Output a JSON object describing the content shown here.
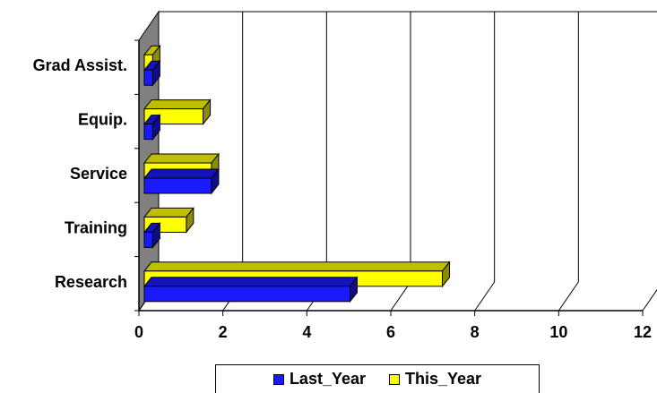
{
  "chart_data": {
    "type": "bar",
    "orientation": "horizontal",
    "style": "3d",
    "categories": [
      "Research",
      "Training",
      "Service",
      "Equip.",
      "Grad Assist."
    ],
    "series": [
      {
        "name": "Last_Year",
        "color": "#1a1aff",
        "values": [
          4.9,
          0.2,
          1.6,
          0.2,
          0.2
        ]
      },
      {
        "name": "This_Year",
        "color": "#ffff00",
        "values": [
          7.1,
          1.0,
          1.6,
          1.4,
          0.2
        ]
      }
    ],
    "xlim": [
      0,
      12
    ],
    "xticks": [
      "0",
      "2",
      "4",
      "6",
      "8",
      "10",
      "12"
    ],
    "grid": true,
    "legend_position": "bottom"
  }
}
